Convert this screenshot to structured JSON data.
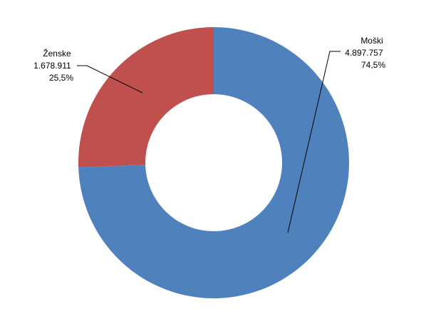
{
  "chart_data": {
    "type": "pie",
    "variant": "donut",
    "title": "",
    "legend": "none",
    "slices": [
      {
        "category": "Moški",
        "value": 4897757,
        "value_label": "4.897.757",
        "percent_label": "74,5%",
        "color": "#4F81BD"
      },
      {
        "category": "Ženske",
        "value": 1678911,
        "value_label": "1.678.911",
        "percent_label": "25,5%",
        "color": "#C0504D"
      }
    ]
  }
}
